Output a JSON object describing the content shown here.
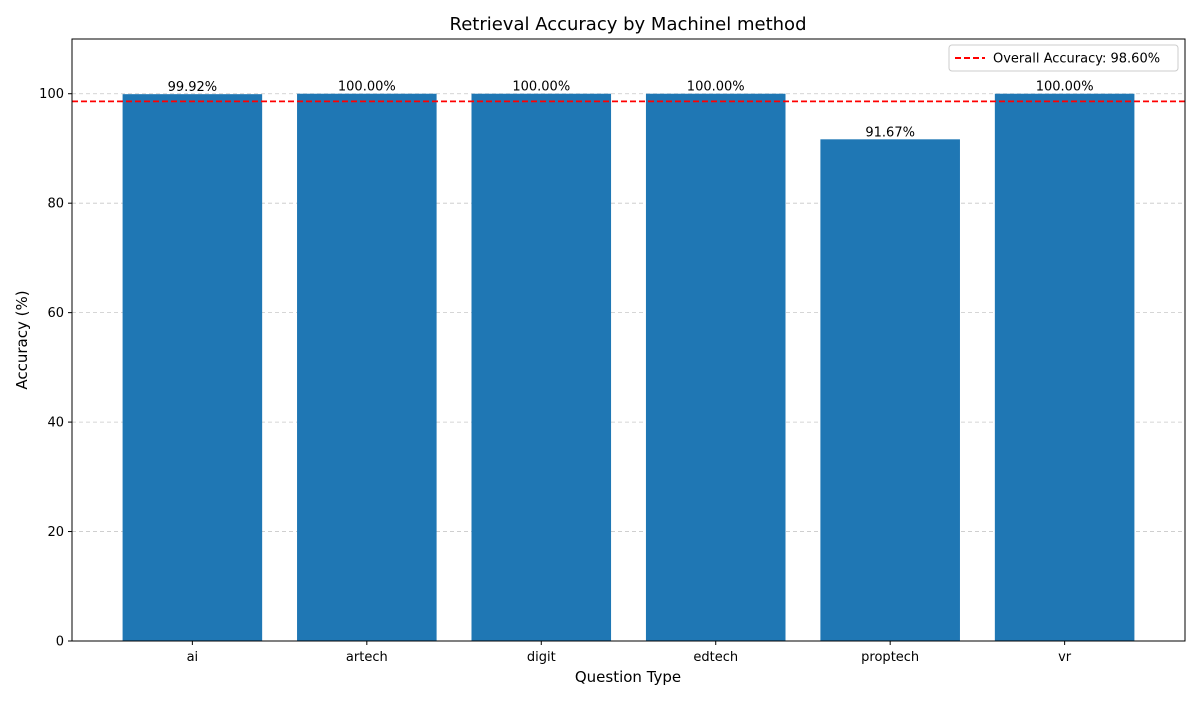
{
  "chart_data": {
    "type": "bar",
    "title": "Retrieval Accuracy by Machinel method",
    "xlabel": "Question Type",
    "ylabel": "Accuracy (%)",
    "categories": [
      "ai",
      "artech",
      "digit",
      "edtech",
      "proptech",
      "vr"
    ],
    "values": [
      99.92,
      100.0,
      100.0,
      100.0,
      91.67,
      100.0
    ],
    "value_labels": [
      "99.92%",
      "100.00%",
      "100.00%",
      "100.00%",
      "91.67%",
      "100.00%"
    ],
    "ylim": [
      0,
      110
    ],
    "yticks": [
      0,
      20,
      40,
      60,
      80,
      100
    ],
    "grid": "y-axis dashed",
    "bar_color": "#1f77b4",
    "reference_line": {
      "label": "Overall Accuracy: 98.60%",
      "value": 98.6,
      "color": "#ff0000",
      "style": "dashed"
    },
    "legend_position": "top-right"
  }
}
